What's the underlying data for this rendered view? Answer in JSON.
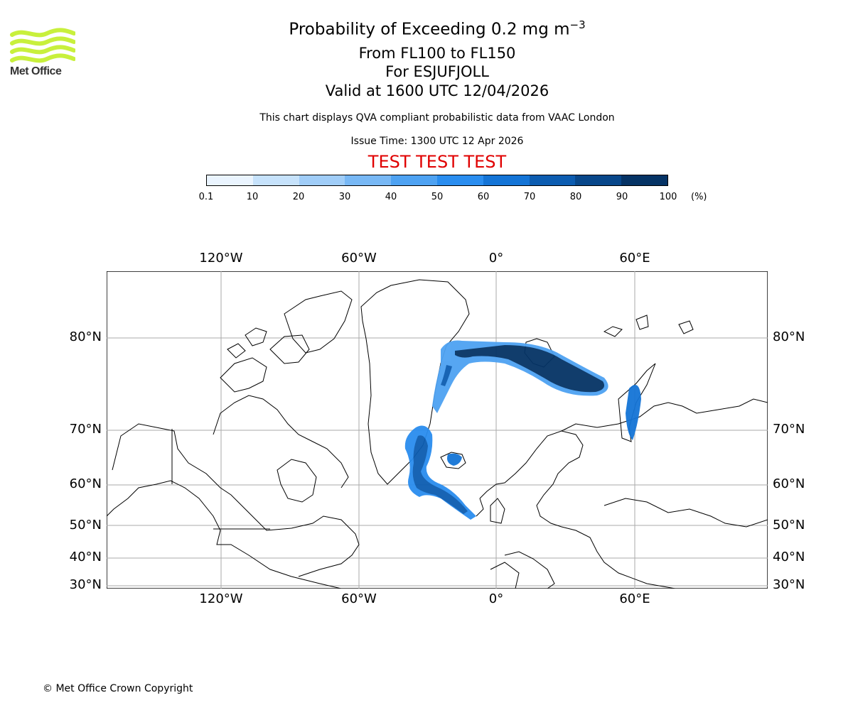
{
  "header": {
    "title_prefix": "Probability of Exceeding 0.2 mg m",
    "title_exponent": "−3",
    "levels": "From FL100 to FL150",
    "volcano": "For ESJUFJOLL",
    "valid": "Valid at 1600 UTC 12/04/2026",
    "subtitle": "This chart displays QVA compliant probabilistic data from VAAC London",
    "issue": "Issue Time: 1300 UTC 12 Apr 2026",
    "banner": "TEST TEST TEST"
  },
  "logo": {
    "text": "Met Office",
    "color": "#c8f03c"
  },
  "colorbar": {
    "ticks": [
      "0.1",
      "10",
      "20",
      "30",
      "40",
      "50",
      "60",
      "70",
      "80",
      "90",
      "100"
    ],
    "unit": "(%)",
    "colors": [
      "#eaf4fe",
      "#c6e2fb",
      "#a0cdf8",
      "#78b8f5",
      "#4ea2f2",
      "#2a8def",
      "#1474d6",
      "#0c5cb0",
      "#08478a",
      "#053365"
    ]
  },
  "map": {
    "lon_labels_top": [
      "120°W",
      "60°W",
      "0°",
      "60°E"
    ],
    "lon_labels_bottom": [
      "120°W",
      "60°W",
      "0°",
      "60°E"
    ],
    "lat_labels_left": [
      "80°N",
      "70°N",
      "60°N",
      "50°N",
      "40°N",
      "30°N"
    ],
    "lat_labels_right": [
      "80°N",
      "70°N",
      "60°N",
      "50°N",
      "40°N",
      "30°N"
    ]
  },
  "footer": {
    "copyright": "© Met Office Crown Copyright"
  }
}
